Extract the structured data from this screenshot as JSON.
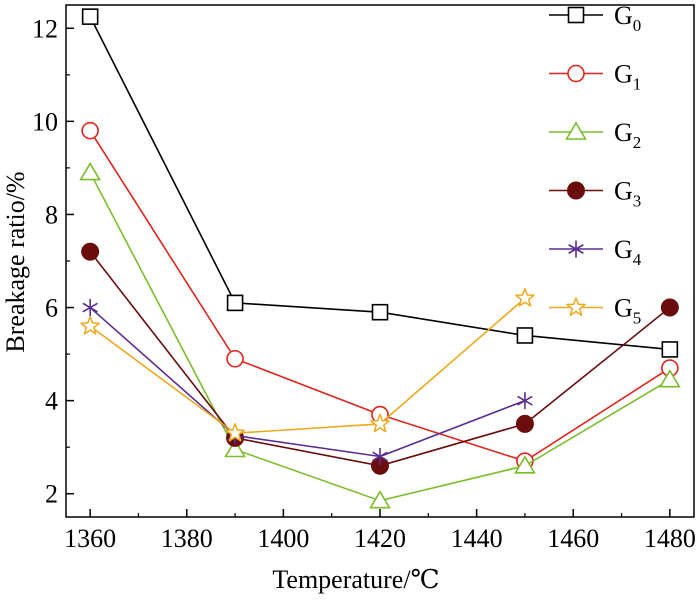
{
  "chart_data": {
    "type": "line",
    "title": "",
    "xlabel": "Temperature/℃",
    "ylabel": "Breakage ratio/%",
    "xlim": [
      1355,
      1485
    ],
    "ylim": [
      1.5,
      12.5
    ],
    "xticks": [
      1360,
      1380,
      1400,
      1420,
      1440,
      1460,
      1480
    ],
    "yticks": [
      2,
      4,
      6,
      8,
      10,
      12
    ],
    "legend_position": "top-right",
    "grid": false,
    "series": [
      {
        "name": "G",
        "subscript": "0",
        "color": "#000000",
        "marker": "square",
        "x": [
          1360,
          1390,
          1420,
          1450,
          1480
        ],
        "values": [
          12.25,
          6.1,
          5.9,
          5.4,
          5.1
        ]
      },
      {
        "name": "G",
        "subscript": "1",
        "color": "#e3221c",
        "marker": "circle-open",
        "x": [
          1360,
          1390,
          1420,
          1450,
          1480
        ],
        "values": [
          9.8,
          4.9,
          3.7,
          2.7,
          4.7
        ]
      },
      {
        "name": "G",
        "subscript": "2",
        "color": "#7cbd2b",
        "marker": "triangle",
        "x": [
          1360,
          1390,
          1420,
          1450,
          1480
        ],
        "values": [
          8.9,
          2.95,
          1.85,
          2.6,
          4.45
        ]
      },
      {
        "name": "G",
        "subscript": "3",
        "color": "#6b0d0d",
        "marker": "circle-filled",
        "x": [
          1360,
          1390,
          1420,
          1450,
          1480
        ],
        "values": [
          7.2,
          3.2,
          2.6,
          3.5,
          6.0
        ]
      },
      {
        "name": "G",
        "subscript": "4",
        "color": "#5a2d91",
        "marker": "asterisk",
        "x": [
          1360,
          1390,
          1420,
          1450
        ],
        "values": [
          6.0,
          3.25,
          2.8,
          4.0
        ]
      },
      {
        "name": "G",
        "subscript": "5",
        "color": "#f0a81c",
        "marker": "star",
        "x": [
          1360,
          1390,
          1420,
          1450
        ],
        "values": [
          5.6,
          3.3,
          3.5,
          6.2
        ]
      }
    ]
  }
}
